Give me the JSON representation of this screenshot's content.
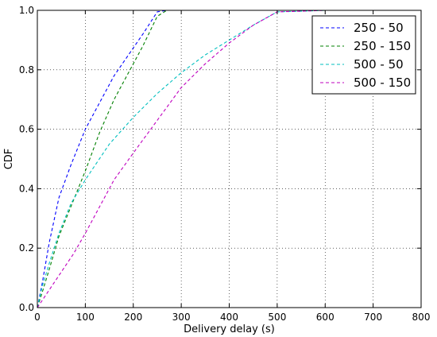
{
  "chart_data": {
    "type": "line",
    "xlabel": "Delivery delay (s)",
    "ylabel": "CDF",
    "xlim": [
      0,
      800
    ],
    "ylim": [
      0,
      1.0
    ],
    "xticks": [
      "0",
      "100",
      "200",
      "300",
      "400",
      "500",
      "600",
      "700",
      "800"
    ],
    "yticks": [
      "0.0",
      "0.2",
      "0.4",
      "0.6",
      "0.8",
      "1.0"
    ],
    "grid": true,
    "line_style": "dashed",
    "legend_position": "top-right",
    "series": [
      {
        "name": "250 - 50",
        "color": "#0000ff",
        "x": [
          0,
          10,
          25,
          45,
          70,
          100,
          130,
          160,
          190,
          220,
          250,
          270,
          300
        ],
        "y": [
          0,
          0.08,
          0.22,
          0.37,
          0.48,
          0.6,
          0.69,
          0.78,
          0.85,
          0.92,
          0.995,
          1.0,
          1.0
        ]
      },
      {
        "name": "250 - 150",
        "color": "#008000",
        "x": [
          0,
          10,
          25,
          45,
          70,
          100,
          130,
          160,
          190,
          220,
          250,
          260,
          270,
          300
        ],
        "y": [
          0,
          0.05,
          0.13,
          0.24,
          0.34,
          0.46,
          0.59,
          0.7,
          0.79,
          0.88,
          0.98,
          0.99,
          1.0,
          1.0
        ]
      },
      {
        "name": "500 - 50",
        "color": "#00bfbf",
        "x": [
          0,
          10,
          25,
          45,
          70,
          100,
          150,
          200,
          250,
          300,
          350,
          400,
          450,
          500,
          550,
          600,
          650
        ],
        "y": [
          0,
          0.07,
          0.15,
          0.25,
          0.35,
          0.43,
          0.55,
          0.64,
          0.72,
          0.79,
          0.85,
          0.9,
          0.95,
          0.995,
          0.997,
          1.0,
          1.0
        ]
      },
      {
        "name": "500 - 150",
        "color": "#bf00bf",
        "x": [
          0,
          25,
          50,
          75,
          100,
          130,
          160,
          200,
          250,
          300,
          350,
          400,
          450,
          500,
          550,
          600,
          650
        ],
        "y": [
          0,
          0.06,
          0.12,
          0.18,
          0.25,
          0.34,
          0.43,
          0.52,
          0.63,
          0.74,
          0.82,
          0.89,
          0.95,
          0.995,
          0.997,
          1.0,
          1.0
        ]
      }
    ]
  }
}
